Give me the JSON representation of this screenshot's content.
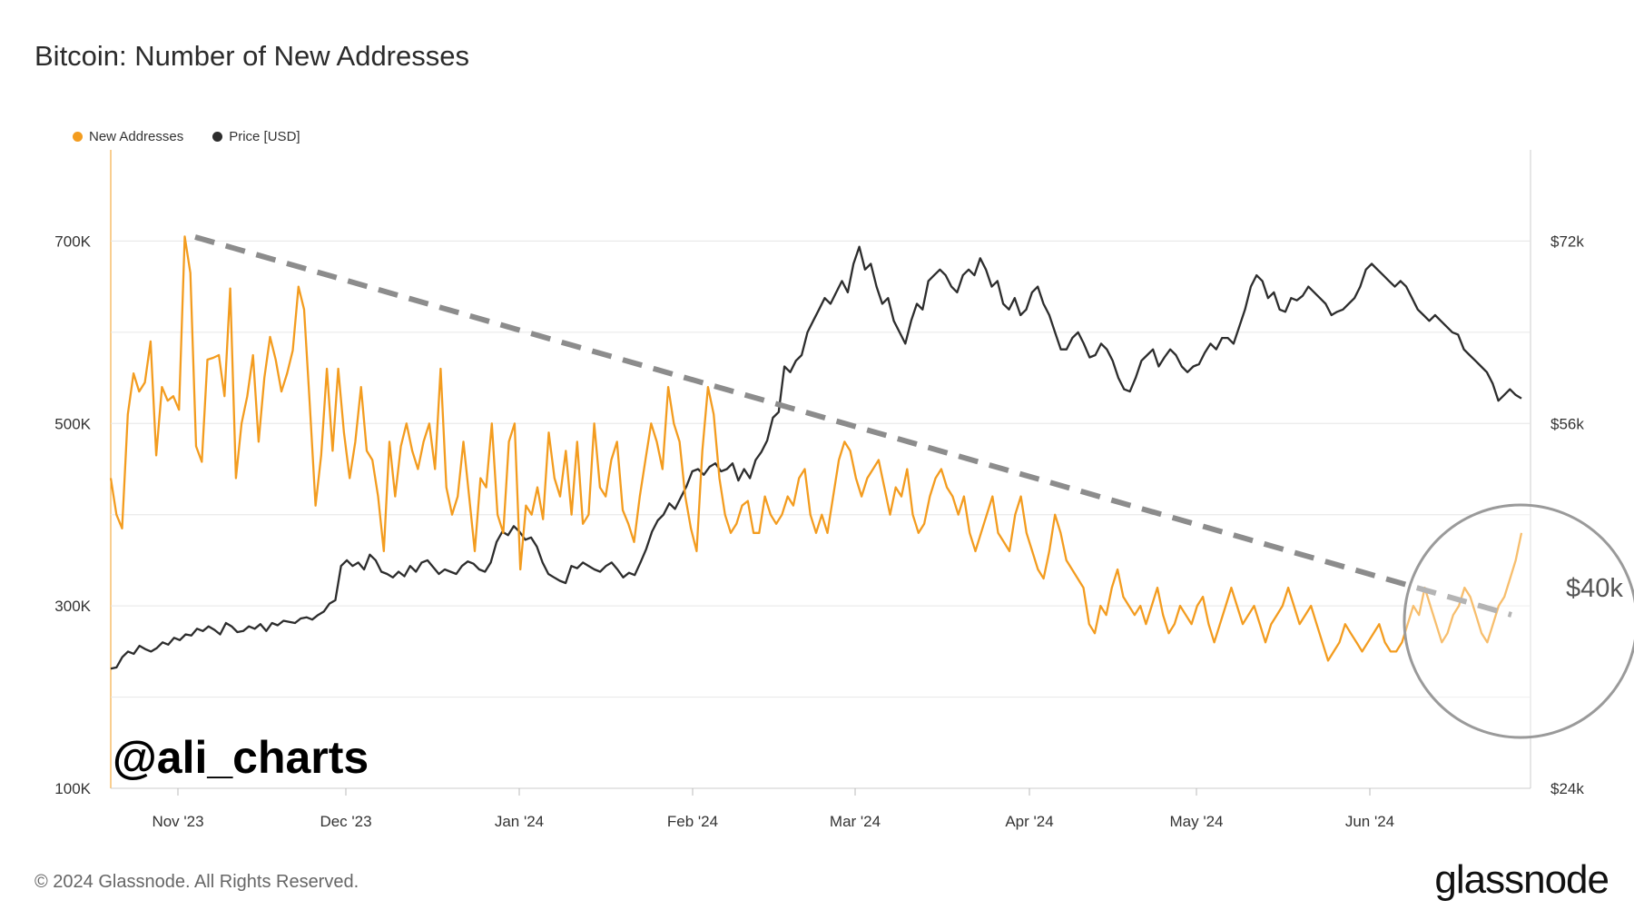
{
  "chart_data": {
    "type": "line",
    "title": "Bitcoin: Number of New Addresses",
    "legend": {
      "placement": "top-left",
      "items": [
        {
          "label": "New Addresses",
          "color": "#f39c1f"
        },
        {
          "label": "Price [USD]",
          "color": "#2d2d2d"
        }
      ]
    },
    "x_ticks": [
      "Nov '23",
      "Dec '23",
      "Jan '24",
      "Feb '24",
      "Mar '24",
      "Apr '24",
      "May '24",
      "Jun '24"
    ],
    "y_left": {
      "ticks": [
        "100K",
        "300K",
        "500K",
        "700K"
      ],
      "range": [
        100000,
        800000
      ]
    },
    "y_right": {
      "ticks": [
        "$24k",
        "$56k",
        "$72k"
      ],
      "range": [
        24000,
        80000
      ]
    },
    "grid": true,
    "series": [
      {
        "name": "New Addresses",
        "color": "#f39c1f",
        "axis": "left",
        "values": [
          440000,
          400000,
          385000,
          510000,
          555000,
          535000,
          545000,
          590000,
          465000,
          540000,
          525000,
          530000,
          515000,
          705000,
          665000,
          475000,
          458000,
          570000,
          572000,
          575000,
          530000,
          648000,
          440000,
          500000,
          530000,
          575000,
          480000,
          550000,
          595000,
          570000,
          535000,
          555000,
          580000,
          650000,
          625000,
          520000,
          410000,
          465000,
          560000,
          470000,
          560000,
          490000,
          440000,
          480000,
          540000,
          470000,
          460000,
          420000,
          360000,
          480000,
          420000,
          475000,
          500000,
          470000,
          450000,
          480000,
          500000,
          450000,
          560000,
          430000,
          400000,
          420000,
          480000,
          420000,
          360000,
          440000,
          430000,
          500000,
          400000,
          380000,
          480000,
          500000,
          340000,
          410000,
          400000,
          430000,
          395000,
          490000,
          440000,
          420000,
          470000,
          400000,
          480000,
          390000,
          400000,
          500000,
          430000,
          420000,
          460000,
          480000,
          405000,
          390000,
          370000,
          420000,
          460000,
          500000,
          480000,
          450000,
          540000,
          500000,
          480000,
          420000,
          385000,
          360000,
          470000,
          540000,
          510000,
          440000,
          400000,
          380000,
          390000,
          410000,
          415000,
          380000,
          380000,
          420000,
          400000,
          390000,
          400000,
          420000,
          410000,
          440000,
          450000,
          400000,
          380000,
          400000,
          380000,
          420000,
          460000,
          480000,
          470000,
          440000,
          420000,
          440000,
          450000,
          460000,
          430000,
          400000,
          430000,
          420000,
          450000,
          400000,
          380000,
          390000,
          420000,
          440000,
          450000,
          430000,
          420000,
          400000,
          420000,
          380000,
          360000,
          380000,
          400000,
          420000,
          380000,
          370000,
          360000,
          400000,
          420000,
          380000,
          360000,
          340000,
          330000,
          360000,
          400000,
          380000,
          350000,
          340000,
          330000,
          320000,
          280000,
          270000,
          300000,
          290000,
          320000,
          340000,
          310000,
          300000,
          290000,
          300000,
          280000,
          300000,
          320000,
          290000,
          270000,
          280000,
          300000,
          290000,
          280000,
          300000,
          310000,
          280000,
          260000,
          280000,
          300000,
          320000,
          300000,
          280000,
          290000,
          300000,
          280000,
          260000,
          280000,
          290000,
          300000,
          320000,
          300000,
          280000,
          290000,
          300000,
          280000,
          260000,
          240000,
          250000,
          260000,
          280000,
          270000,
          260000,
          250000,
          260000,
          270000,
          280000,
          260000,
          250000,
          250000,
          260000,
          280000,
          300000,
          290000,
          320000,
          300000,
          280000,
          260000,
          270000,
          290000,
          300000,
          320000,
          310000,
          290000,
          270000,
          260000,
          280000,
          300000,
          310000,
          330000,
          350000,
          380000
        ],
        "note": ""
      },
      {
        "name": "Price [USD]",
        "color": "#2d2d2d",
        "axis": "right",
        "values": [
          34500,
          34600,
          35500,
          36000,
          35800,
          36500,
          36200,
          36000,
          36300,
          36800,
          36600,
          37200,
          37000,
          37500,
          37400,
          38000,
          37800,
          38200,
          37900,
          37500,
          38500,
          38200,
          37700,
          37800,
          38200,
          38000,
          38400,
          37800,
          38500,
          38300,
          38700,
          38600,
          38500,
          38900,
          39000,
          38800,
          39200,
          39500,
          40200,
          40500,
          43500,
          44000,
          43500,
          43800,
          43200,
          44500,
          44000,
          43000,
          42800,
          42500,
          43000,
          42600,
          43500,
          43000,
          43800,
          44000,
          43400,
          42800,
          43200,
          43000,
          42800,
          43500,
          43900,
          43700,
          43200,
          43000,
          43800,
          45600,
          46500,
          46200,
          47000,
          46500,
          45800,
          46000,
          45200,
          43800,
          42800,
          42500,
          42200,
          42000,
          43500,
          43300,
          43800,
          43500,
          43200,
          43000,
          43500,
          43800,
          43200,
          42500,
          42900,
          42700,
          43800,
          45000,
          46500,
          47500,
          48000,
          49000,
          48500,
          49500,
          50500,
          51800,
          52000,
          51500,
          52200,
          52500,
          51800,
          52000,
          52500,
          51000,
          52000,
          51200,
          52800,
          53500,
          54500,
          56500,
          57000,
          61000,
          60500,
          61500,
          62000,
          64000,
          65000,
          66000,
          67000,
          66500,
          67500,
          68500,
          67500,
          70000,
          71500,
          69500,
          70000,
          68000,
          66500,
          67000,
          65000,
          64000,
          63000,
          65000,
          66500,
          66000,
          68500,
          69000,
          69500,
          69000,
          68000,
          67500,
          69000,
          69500,
          69000,
          70500,
          69500,
          68000,
          68500,
          66500,
          66000,
          67000,
          65500,
          66000,
          67500,
          68000,
          66500,
          65500,
          64000,
          62500,
          62500,
          63500,
          64000,
          63000,
          61800,
          62000,
          63000,
          62500,
          61500,
          60000,
          59000,
          58800,
          60000,
          61500,
          62000,
          62500,
          61000,
          61800,
          62500,
          62000,
          61000,
          60500,
          61000,
          61200,
          62200,
          63000,
          62500,
          63500,
          63500,
          63000,
          64500,
          66000,
          68000,
          69000,
          68500,
          67000,
          67500,
          66000,
          65800,
          67000,
          66800,
          67200,
          68000,
          67500,
          67000,
          66500,
          65500,
          65800,
          66000,
          66500,
          67000,
          68000,
          69500,
          70000,
          69500,
          69000,
          68500,
          68000,
          68500,
          68000,
          67000,
          66000,
          65500,
          65000,
          65500,
          65000,
          64500,
          64000,
          63800,
          62500,
          62000,
          61500,
          61000,
          60500,
          59500,
          58000,
          58500,
          59000,
          58500,
          58200
        ]
      }
    ],
    "annotations": {
      "callout_label": "$40k",
      "watermark": "@ali_charts"
    }
  },
  "footer": {
    "copyright": "© 2024 Glassnode. All Rights Reserved.",
    "brand": "glassnode"
  }
}
